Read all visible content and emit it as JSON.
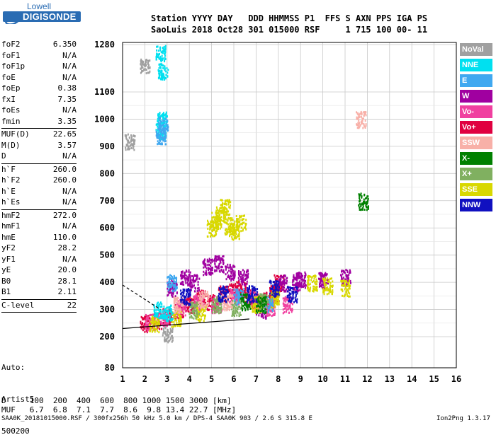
{
  "logo": {
    "top": "Lowell",
    "bottom": "DIGISONDE"
  },
  "header": {
    "line1": "Station YYYY DAY   DDD HHMMSS P1  FFS S AXN PPS IGA PS",
    "line2": "SaoLuis 2018 Oct28 301 015000 RSF     1 715 100 00- 11"
  },
  "params": [
    {
      "label": "foF2",
      "value": "6.350"
    },
    {
      "label": "foF1",
      "value": "N/A"
    },
    {
      "label": "foF1p",
      "value": "N/A"
    },
    {
      "label": "foE",
      "value": "N/A"
    },
    {
      "label": "foEp",
      "value": "0.38"
    },
    {
      "label": "fxI",
      "value": "7.35"
    },
    {
      "label": "foEs",
      "value": "N/A"
    },
    {
      "label": "fmin",
      "value": "3.35"
    },
    {
      "sep": true
    },
    {
      "label": "MUF(D)",
      "value": "22.65"
    },
    {
      "label": "M(D)",
      "value": "3.57"
    },
    {
      "label": "D",
      "value": "N/A"
    },
    {
      "sep": true
    },
    {
      "label": "h`F",
      "value": "260.0"
    },
    {
      "label": "h`F2",
      "value": "260.0"
    },
    {
      "label": "h`E",
      "value": "N/A"
    },
    {
      "label": "h`Es",
      "value": "N/A"
    },
    {
      "sep": true
    },
    {
      "label": "hmF2",
      "value": "272.0"
    },
    {
      "label": "hmF1",
      "value": "N/A"
    },
    {
      "label": "hmE",
      "value": "110.0"
    },
    {
      "label": "yF2",
      "value": "28.2"
    },
    {
      "label": "yF1",
      "value": "N/A"
    },
    {
      "label": "yE",
      "value": "20.0"
    },
    {
      "label": "B0",
      "value": "28.1"
    },
    {
      "label": "B1",
      "value": "2.11"
    },
    {
      "sep": true
    },
    {
      "label": "C-level",
      "value": "22"
    },
    {
      "sep": true
    }
  ],
  "auto": {
    "line1": "Auto:",
    "line2": "Artist5",
    "line3": "500200"
  },
  "legend": [
    {
      "label": "NoVal",
      "color": "#a0a0a0"
    },
    {
      "label": "NNE",
      "color": "#00e0f0"
    },
    {
      "label": "E",
      "color": "#40a8f0"
    },
    {
      "label": "W",
      "color": "#a000a0"
    },
    {
      "label": "Vo-",
      "color": "#f040a0"
    },
    {
      "label": "Vo+",
      "color": "#e00040"
    },
    {
      "label": "SSW",
      "color": "#f8b0a8"
    },
    {
      "label": "X-",
      "color": "#008000"
    },
    {
      "label": "X+",
      "color": "#80b060"
    },
    {
      "label": "SSE",
      "color": "#d8d800"
    },
    {
      "label": "NNW",
      "color": "#1010c0"
    }
  ],
  "footer": {
    "d_row": "D     100  200  400  600  800 1000 1500 3000 [km]",
    "muf_row": "MUF   6.7  6.8  7.1  7.7  8.6  9.8 13.4 22.7 [MHz]",
    "file_row": "SAA0K_20181015000.RSF / 300fx256h 50 kHz 5.0 km / DPS-4 SAA0K 903 / 2.6 S 315.8 E",
    "version": "Ion2Png 1.3.17"
  },
  "chart_data": {
    "type": "scatter",
    "title": "",
    "xlabel": "",
    "ylabel": "",
    "xlim": [
      1,
      16
    ],
    "ylim": [
      80,
      1280
    ],
    "x_ticks": [
      1,
      2,
      3,
      4,
      5,
      6,
      7,
      8,
      9,
      10,
      11,
      12,
      13,
      14,
      15,
      16
    ],
    "y_ticks": [
      80,
      200,
      300,
      400,
      500,
      600,
      700,
      800,
      900,
      1000,
      1100,
      1280
    ],
    "x_tick_labels": [
      "1",
      "2",
      "3",
      "4",
      "5",
      "6",
      "7",
      "8",
      "9",
      "10",
      "11",
      "12",
      "13",
      "14",
      "15",
      "16"
    ],
    "y_tick_labels": [
      "80",
      "200",
      "300",
      "400",
      "500",
      "600",
      "700",
      "800",
      "900",
      "1000",
      "1100",
      "1280"
    ],
    "grid": true,
    "legend_position": "right",
    "scale": "virtual height vs frequency (height axis nonlinear above 1100)",
    "series": [
      {
        "name": "Vo+",
        "color": "#e00040",
        "points": [
          [
            2.0,
            250
          ],
          [
            2.5,
            260
          ],
          [
            3.0,
            275
          ],
          [
            3.5,
            300
          ],
          [
            4.0,
            320
          ],
          [
            4.5,
            345
          ],
          [
            5.0,
            330
          ],
          [
            5.5,
            360
          ],
          [
            6.0,
            370
          ],
          [
            6.3,
            380
          ],
          [
            6.7,
            350
          ],
          [
            7.0,
            330
          ],
          [
            7.5,
            340
          ],
          [
            7.8,
            360
          ],
          [
            8.0,
            400
          ]
        ]
      },
      {
        "name": "W",
        "color": "#a000a0",
        "points": [
          [
            3.2,
            380
          ],
          [
            3.8,
            420
          ],
          [
            4.2,
            400
          ],
          [
            4.8,
            460
          ],
          [
            5.3,
            470
          ],
          [
            5.8,
            440
          ],
          [
            6.4,
            420
          ],
          [
            7.2,
            300
          ],
          [
            8.2,
            400
          ],
          [
            8.8,
            400
          ],
          [
            9.0,
            410
          ],
          [
            10.0,
            410
          ],
          [
            11.0,
            420
          ]
        ]
      },
      {
        "name": "Vo-",
        "color": "#f040a0",
        "points": [
          [
            2.2,
            255
          ],
          [
            2.8,
            270
          ],
          [
            3.6,
            310
          ],
          [
            4.4,
            330
          ],
          [
            5.2,
            320
          ],
          [
            6.0,
            350
          ],
          [
            6.8,
            340
          ],
          [
            7.6,
            310
          ],
          [
            8.4,
            320
          ]
        ]
      },
      {
        "name": "SSE",
        "color": "#d8d800",
        "points": [
          [
            2.4,
            250
          ],
          [
            3.4,
            270
          ],
          [
            4.5,
            290
          ],
          [
            5.0,
            600
          ],
          [
            5.2,
            630
          ],
          [
            5.4,
            650
          ],
          [
            5.6,
            680
          ],
          [
            5.8,
            610
          ],
          [
            6.0,
            590
          ],
          [
            6.3,
            620
          ],
          [
            7.0,
            320
          ],
          [
            7.8,
            340
          ],
          [
            9.5,
            400
          ],
          [
            10.2,
            390
          ],
          [
            11.0,
            380
          ]
        ]
      },
      {
        "name": "NNE",
        "color": "#00e0f0",
        "points": [
          [
            2.7,
            960
          ],
          [
            2.75,
            1000
          ],
          [
            2.8,
            1180
          ],
          [
            2.7,
            1250
          ],
          [
            2.6,
            300
          ],
          [
            3.0,
            290
          ]
        ]
      },
      {
        "name": "E",
        "color": "#40a8f0",
        "points": [
          [
            2.7,
            940
          ],
          [
            2.8,
            980
          ],
          [
            3.2,
            400
          ],
          [
            6.2,
            350
          ],
          [
            7.5,
            320
          ]
        ]
      },
      {
        "name": "X+",
        "color": "#80b060",
        "points": [
          [
            4.2,
            300
          ],
          [
            5.2,
            320
          ],
          [
            6.1,
            310
          ],
          [
            7.3,
            330
          ]
        ]
      },
      {
        "name": "X-",
        "color": "#008000",
        "points": [
          [
            6.5,
            330
          ],
          [
            7.2,
            320
          ],
          [
            11.8,
            700
          ]
        ]
      },
      {
        "name": "SSW",
        "color": "#f8b0a8",
        "points": [
          [
            3.5,
            320
          ],
          [
            4.6,
            340
          ],
          [
            5.7,
            330
          ],
          [
            11.7,
            1000
          ]
        ]
      },
      {
        "name": "NNW",
        "color": "#1010c0",
        "points": [
          [
            3.8,
            350
          ],
          [
            5.5,
            360
          ],
          [
            6.8,
            360
          ],
          [
            7.8,
            380
          ],
          [
            8.6,
            360
          ]
        ]
      },
      {
        "name": "NoVal",
        "color": "#a0a0a0",
        "points": [
          [
            1.3,
            920
          ],
          [
            2.0,
            1200
          ],
          [
            3.0,
            210
          ]
        ]
      }
    ],
    "annotations": [
      "trace fit line (black) from ~(1.0,230) to ~(6.7,260)",
      "dashed trace line from ~(1.0,390) to ~(2.7,300)"
    ]
  }
}
